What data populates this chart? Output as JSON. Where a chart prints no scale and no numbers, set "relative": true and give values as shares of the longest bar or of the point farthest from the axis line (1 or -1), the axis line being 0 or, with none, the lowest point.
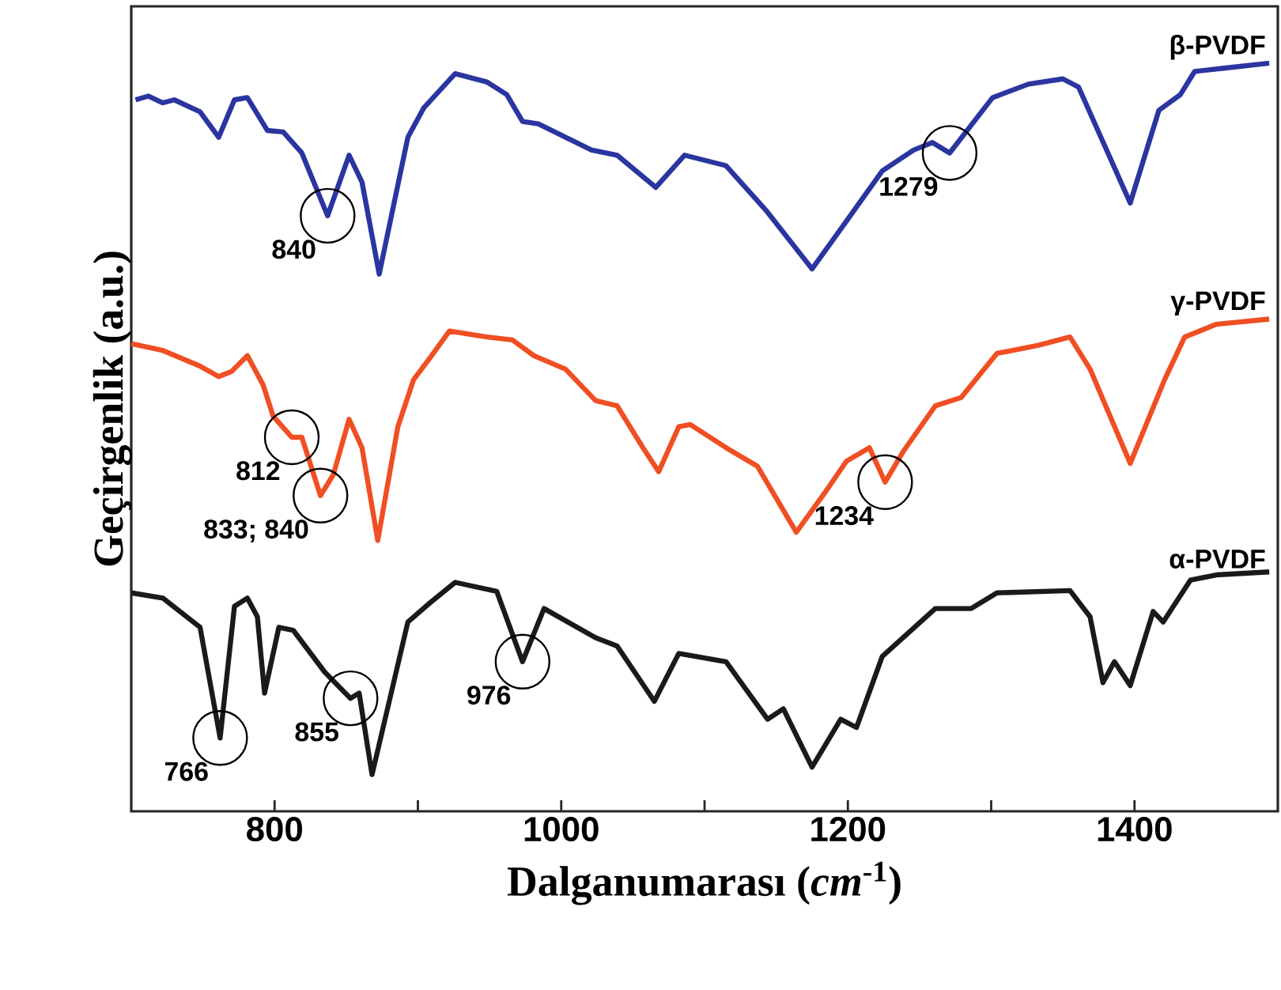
{
  "chart_data": {
    "type": "line",
    "relative": true,
    "xlabel": "Dalganumarası (*cm*$^{-1}$)",
    "ylabel": "Geçirgenlik (a.u.)",
    "xlim": [
      700,
      1500
    ],
    "xticks": [
      800,
      {
        "value": 900,
        "label": null
      },
      1000,
      {
        "value": 1100,
        "label": null
      },
      1200,
      {
        "value": 1300,
        "label": null
      },
      1400
    ],
    "series": [
      {
        "name": "β-PVDF",
        "color": "#2b35a0",
        "x": [
          703,
          712,
          722,
          730,
          748,
          761,
          772,
          781,
          795,
          806,
          819,
          837,
          852,
          861,
          873,
          893,
          904,
          926,
          948,
          962,
          973,
          984,
          1021,
          1039,
          1066,
          1086,
          1115,
          1143,
          1175,
          1199,
          1224,
          1246,
          1259,
          1271,
          1301,
          1326,
          1350,
          1361,
          1397,
          1417,
          1432,
          1442,
          1461,
          1494
        ],
        "values": [
          0.951,
          0.956,
          0.947,
          0.951,
          0.935,
          0.901,
          0.951,
          0.954,
          0.91,
          0.908,
          0.88,
          0.796,
          0.877,
          0.841,
          0.718,
          0.901,
          0.94,
          0.986,
          0.975,
          0.958,
          0.922,
          0.919,
          0.884,
          0.877,
          0.834,
          0.877,
          0.863,
          0.803,
          0.725,
          0.789,
          0.856,
          0.884,
          0.894,
          0.88,
          0.954,
          0.972,
          0.979,
          0.968,
          0.813,
          0.937,
          0.958,
          0.989,
          0.993,
          1.0
        ]
      },
      {
        "name": "γ-PVDF",
        "color": "#f04e23",
        "x": [
          700,
          722,
          748,
          761,
          770,
          781,
          792,
          799,
          812,
          819,
          832,
          841,
          852,
          861,
          872,
          886,
          897,
          908,
          922,
          948,
          966,
          981,
          1003,
          1024,
          1039,
          1057,
          1068,
          1082,
          1090,
          1115,
          1137,
          1164,
          1184,
          1199,
          1215,
          1226,
          1239,
          1261,
          1279,
          1304,
          1333,
          1355,
          1369,
          1397,
          1421,
          1435,
          1457,
          1494
        ],
        "values": [
          0.625,
          0.616,
          0.595,
          0.581,
          0.588,
          0.609,
          0.57,
          0.528,
          0.5,
          0.5,
          0.422,
          0.45,
          0.524,
          0.486,
          0.362,
          0.514,
          0.577,
          0.605,
          0.642,
          0.634,
          0.63,
          0.609,
          0.591,
          0.549,
          0.542,
          0.486,
          0.454,
          0.514,
          0.517,
          0.486,
          0.461,
          0.373,
          0.426,
          0.468,
          0.486,
          0.44,
          0.482,
          0.542,
          0.553,
          0.612,
          0.623,
          0.634,
          0.591,
          0.465,
          0.577,
          0.634,
          0.651,
          0.658
        ]
      },
      {
        "name": "α-PVDF",
        "color": "#1a1a1a",
        "x": [
          700,
          722,
          748,
          762,
          772,
          781,
          788,
          793,
          803,
          813,
          835,
          853,
          859,
          868,
          893,
          908,
          926,
          955,
          973,
          988,
          1024,
          1039,
          1065,
          1082,
          1115,
          1144,
          1155,
          1175,
          1195,
          1206,
          1224,
          1261,
          1286,
          1304,
          1355,
          1369,
          1378,
          1386,
          1397,
          1413,
          1420,
          1439,
          1457,
          1494
        ],
        "values": [
          0.292,
          0.285,
          0.246,
          0.098,
          0.274,
          0.285,
          0.26,
          0.158,
          0.246,
          0.242,
          0.186,
          0.151,
          0.158,
          0.049,
          0.253,
          0.278,
          0.306,
          0.294,
          0.2,
          0.271,
          0.232,
          0.221,
          0.147,
          0.211,
          0.2,
          0.123,
          0.137,
          0.059,
          0.123,
          0.112,
          0.207,
          0.271,
          0.271,
          0.292,
          0.295,
          0.26,
          0.172,
          0.2,
          0.168,
          0.267,
          0.253,
          0.309,
          0.316,
          0.32
        ]
      }
    ],
    "annotations": [
      {
        "text": "840",
        "x": 837,
        "y": 0.796
      },
      {
        "text": "1279",
        "x": 1271,
        "y": 0.88
      },
      {
        "text": "812",
        "x": 812,
        "y": 0.5
      },
      {
        "text": "833; 840",
        "x": 832,
        "y": 0.422
      },
      {
        "text": "1234",
        "x": 1226,
        "y": 0.44
      },
      {
        "text": "766",
        "x": 762,
        "y": 0.098
      },
      {
        "text": "855",
        "x": 853,
        "y": 0.151
      },
      {
        "text": "976",
        "x": 973,
        "y": 0.2
      }
    ]
  }
}
